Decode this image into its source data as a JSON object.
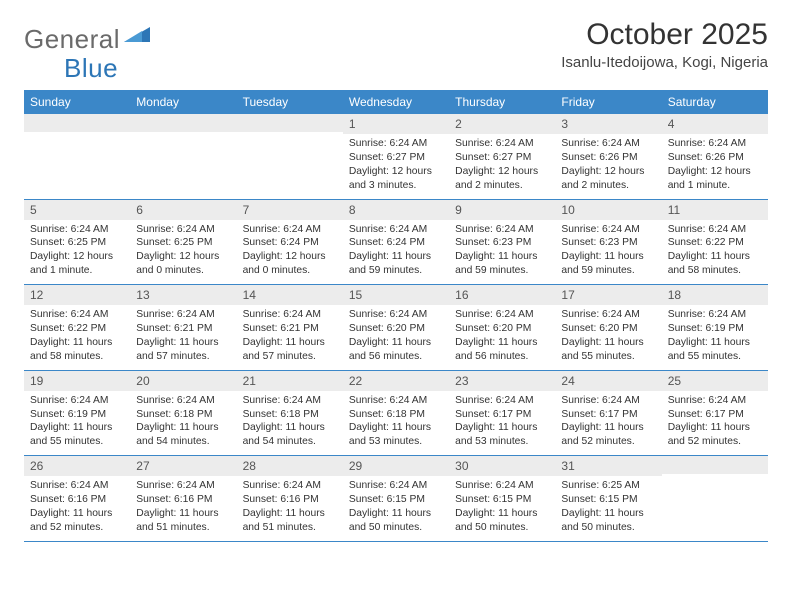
{
  "brand": {
    "text1": "General",
    "text2": "Blue",
    "shape_color": "#2d76b6"
  },
  "title": "October 2025",
  "location": "Isanlu-Itedoijowa, Kogi, Nigeria",
  "colors": {
    "header_bg": "#3b87c8",
    "header_text": "#ffffff",
    "daynum_bg": "#ececec",
    "text": "#333333",
    "rule": "#3b87c8"
  },
  "weekdays": [
    "Sunday",
    "Monday",
    "Tuesday",
    "Wednesday",
    "Thursday",
    "Friday",
    "Saturday"
  ],
  "weeks": [
    [
      {
        "day": "",
        "sunrise": "",
        "sunset": "",
        "daylight": ""
      },
      {
        "day": "",
        "sunrise": "",
        "sunset": "",
        "daylight": ""
      },
      {
        "day": "",
        "sunrise": "",
        "sunset": "",
        "daylight": ""
      },
      {
        "day": "1",
        "sunrise": "Sunrise: 6:24 AM",
        "sunset": "Sunset: 6:27 PM",
        "daylight": "Daylight: 12 hours and 3 minutes."
      },
      {
        "day": "2",
        "sunrise": "Sunrise: 6:24 AM",
        "sunset": "Sunset: 6:27 PM",
        "daylight": "Daylight: 12 hours and 2 minutes."
      },
      {
        "day": "3",
        "sunrise": "Sunrise: 6:24 AM",
        "sunset": "Sunset: 6:26 PM",
        "daylight": "Daylight: 12 hours and 2 minutes."
      },
      {
        "day": "4",
        "sunrise": "Sunrise: 6:24 AM",
        "sunset": "Sunset: 6:26 PM",
        "daylight": "Daylight: 12 hours and 1 minute."
      }
    ],
    [
      {
        "day": "5",
        "sunrise": "Sunrise: 6:24 AM",
        "sunset": "Sunset: 6:25 PM",
        "daylight": "Daylight: 12 hours and 1 minute."
      },
      {
        "day": "6",
        "sunrise": "Sunrise: 6:24 AM",
        "sunset": "Sunset: 6:25 PM",
        "daylight": "Daylight: 12 hours and 0 minutes."
      },
      {
        "day": "7",
        "sunrise": "Sunrise: 6:24 AM",
        "sunset": "Sunset: 6:24 PM",
        "daylight": "Daylight: 12 hours and 0 minutes."
      },
      {
        "day": "8",
        "sunrise": "Sunrise: 6:24 AM",
        "sunset": "Sunset: 6:24 PM",
        "daylight": "Daylight: 11 hours and 59 minutes."
      },
      {
        "day": "9",
        "sunrise": "Sunrise: 6:24 AM",
        "sunset": "Sunset: 6:23 PM",
        "daylight": "Daylight: 11 hours and 59 minutes."
      },
      {
        "day": "10",
        "sunrise": "Sunrise: 6:24 AM",
        "sunset": "Sunset: 6:23 PM",
        "daylight": "Daylight: 11 hours and 59 minutes."
      },
      {
        "day": "11",
        "sunrise": "Sunrise: 6:24 AM",
        "sunset": "Sunset: 6:22 PM",
        "daylight": "Daylight: 11 hours and 58 minutes."
      }
    ],
    [
      {
        "day": "12",
        "sunrise": "Sunrise: 6:24 AM",
        "sunset": "Sunset: 6:22 PM",
        "daylight": "Daylight: 11 hours and 58 minutes."
      },
      {
        "day": "13",
        "sunrise": "Sunrise: 6:24 AM",
        "sunset": "Sunset: 6:21 PM",
        "daylight": "Daylight: 11 hours and 57 minutes."
      },
      {
        "day": "14",
        "sunrise": "Sunrise: 6:24 AM",
        "sunset": "Sunset: 6:21 PM",
        "daylight": "Daylight: 11 hours and 57 minutes."
      },
      {
        "day": "15",
        "sunrise": "Sunrise: 6:24 AM",
        "sunset": "Sunset: 6:20 PM",
        "daylight": "Daylight: 11 hours and 56 minutes."
      },
      {
        "day": "16",
        "sunrise": "Sunrise: 6:24 AM",
        "sunset": "Sunset: 6:20 PM",
        "daylight": "Daylight: 11 hours and 56 minutes."
      },
      {
        "day": "17",
        "sunrise": "Sunrise: 6:24 AM",
        "sunset": "Sunset: 6:20 PM",
        "daylight": "Daylight: 11 hours and 55 minutes."
      },
      {
        "day": "18",
        "sunrise": "Sunrise: 6:24 AM",
        "sunset": "Sunset: 6:19 PM",
        "daylight": "Daylight: 11 hours and 55 minutes."
      }
    ],
    [
      {
        "day": "19",
        "sunrise": "Sunrise: 6:24 AM",
        "sunset": "Sunset: 6:19 PM",
        "daylight": "Daylight: 11 hours and 55 minutes."
      },
      {
        "day": "20",
        "sunrise": "Sunrise: 6:24 AM",
        "sunset": "Sunset: 6:18 PM",
        "daylight": "Daylight: 11 hours and 54 minutes."
      },
      {
        "day": "21",
        "sunrise": "Sunrise: 6:24 AM",
        "sunset": "Sunset: 6:18 PM",
        "daylight": "Daylight: 11 hours and 54 minutes."
      },
      {
        "day": "22",
        "sunrise": "Sunrise: 6:24 AM",
        "sunset": "Sunset: 6:18 PM",
        "daylight": "Daylight: 11 hours and 53 minutes."
      },
      {
        "day": "23",
        "sunrise": "Sunrise: 6:24 AM",
        "sunset": "Sunset: 6:17 PM",
        "daylight": "Daylight: 11 hours and 53 minutes."
      },
      {
        "day": "24",
        "sunrise": "Sunrise: 6:24 AM",
        "sunset": "Sunset: 6:17 PM",
        "daylight": "Daylight: 11 hours and 52 minutes."
      },
      {
        "day": "25",
        "sunrise": "Sunrise: 6:24 AM",
        "sunset": "Sunset: 6:17 PM",
        "daylight": "Daylight: 11 hours and 52 minutes."
      }
    ],
    [
      {
        "day": "26",
        "sunrise": "Sunrise: 6:24 AM",
        "sunset": "Sunset: 6:16 PM",
        "daylight": "Daylight: 11 hours and 52 minutes."
      },
      {
        "day": "27",
        "sunrise": "Sunrise: 6:24 AM",
        "sunset": "Sunset: 6:16 PM",
        "daylight": "Daylight: 11 hours and 51 minutes."
      },
      {
        "day": "28",
        "sunrise": "Sunrise: 6:24 AM",
        "sunset": "Sunset: 6:16 PM",
        "daylight": "Daylight: 11 hours and 51 minutes."
      },
      {
        "day": "29",
        "sunrise": "Sunrise: 6:24 AM",
        "sunset": "Sunset: 6:15 PM",
        "daylight": "Daylight: 11 hours and 50 minutes."
      },
      {
        "day": "30",
        "sunrise": "Sunrise: 6:24 AM",
        "sunset": "Sunset: 6:15 PM",
        "daylight": "Daylight: 11 hours and 50 minutes."
      },
      {
        "day": "31",
        "sunrise": "Sunrise: 6:25 AM",
        "sunset": "Sunset: 6:15 PM",
        "daylight": "Daylight: 11 hours and 50 minutes."
      },
      {
        "day": "",
        "sunrise": "",
        "sunset": "",
        "daylight": ""
      }
    ]
  ]
}
